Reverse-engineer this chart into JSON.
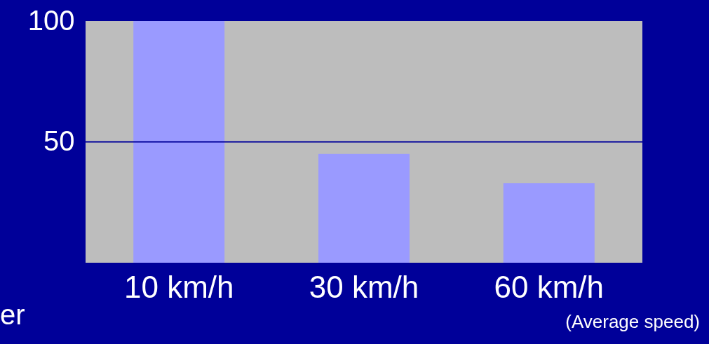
{
  "chart_data": {
    "type": "bar",
    "categories": [
      "10 km/h",
      "30 km/h",
      "60 km/h"
    ],
    "values": [
      100,
      45,
      33
    ],
    "color": "#9a9aff",
    "ylim": [
      0,
      100
    ],
    "yticks": [
      50,
      100
    ],
    "ref_lines": [
      {
        "axis": "y",
        "value": 50,
        "color": "#000099"
      }
    ],
    "annotations": [
      "(Average speed)",
      "er"
    ]
  }
}
